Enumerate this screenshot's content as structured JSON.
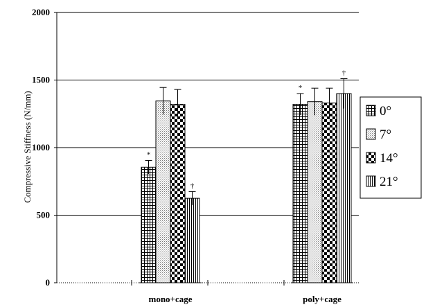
{
  "chart_data": {
    "type": "bar",
    "title": "",
    "xlabel": "",
    "ylabel": "Compressive Stiffness (N/mm)",
    "ylim": [
      0,
      2000
    ],
    "yticks": [
      0,
      500,
      1000,
      1500,
      2000
    ],
    "grid": true,
    "legend_position": "right",
    "categories": [
      "mono+cage",
      "poly+cage"
    ],
    "series": [
      {
        "name": "0°",
        "values": [
          855,
          1320
        ],
        "errors": [
          50,
          80
        ],
        "annotations": [
          "*",
          "*"
        ],
        "pattern": "grid"
      },
      {
        "name": "7°",
        "values": [
          1345,
          1340
        ],
        "errors": [
          100,
          100
        ],
        "annotations": [
          "",
          ""
        ],
        "pattern": "dots"
      },
      {
        "name": "14°",
        "values": [
          1320,
          1330
        ],
        "errors": [
          110,
          110
        ],
        "annotations": [
          "",
          ""
        ],
        "pattern": "checker"
      },
      {
        "name": "21°",
        "values": [
          625,
          1400
        ],
        "errors": [
          50,
          110
        ],
        "annotations": [
          "†",
          "†"
        ],
        "pattern": "vlines"
      }
    ],
    "other_marks": [
      {
        "type": "dash",
        "y": 500
      }
    ]
  }
}
